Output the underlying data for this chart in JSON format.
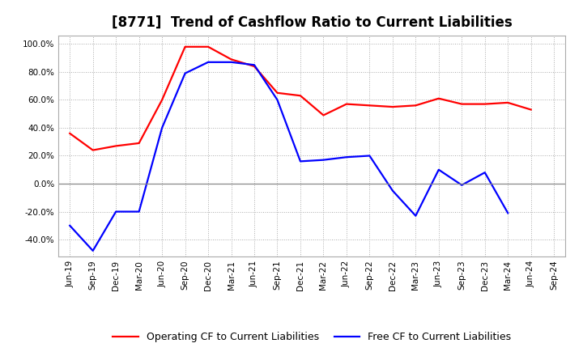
{
  "title": "[8771]  Trend of Cashflow Ratio to Current Liabilities",
  "x_labels": [
    "Jun-19",
    "Sep-19",
    "Dec-19",
    "Mar-20",
    "Jun-20",
    "Sep-20",
    "Dec-20",
    "Mar-21",
    "Jun-21",
    "Sep-21",
    "Dec-21",
    "Mar-22",
    "Jun-22",
    "Sep-22",
    "Dec-22",
    "Mar-23",
    "Jun-23",
    "Sep-23",
    "Dec-23",
    "Mar-24",
    "Jun-24",
    "Sep-24"
  ],
  "operating_cf": [
    0.36,
    0.24,
    0.27,
    0.29,
    0.6,
    0.98,
    0.98,
    0.89,
    0.84,
    0.65,
    0.63,
    0.49,
    0.57,
    0.56,
    0.55,
    0.56,
    0.61,
    0.57,
    0.57,
    0.58,
    0.53,
    null
  ],
  "free_cf": [
    -0.3,
    -0.48,
    -0.2,
    -0.2,
    0.4,
    0.79,
    0.87,
    0.87,
    0.85,
    0.6,
    0.16,
    0.17,
    0.19,
    0.2,
    -0.05,
    -0.23,
    0.1,
    -0.01,
    0.08,
    -0.21,
    null,
    null
  ],
  "operating_color": "#FF0000",
  "free_color": "#0000FF",
  "ylim": [
    -0.52,
    1.06
  ],
  "yticks": [
    -0.4,
    -0.2,
    0.0,
    0.2,
    0.4,
    0.6,
    0.8,
    1.0
  ],
  "background_color": "#FFFFFF",
  "plot_bg_color": "#FFFFFF",
  "grid_color": "#AAAAAA",
  "legend_operating": "Operating CF to Current Liabilities",
  "legend_free": "Free CF to Current Liabilities",
  "title_fontsize": 12,
  "tick_fontsize": 7.5,
  "legend_fontsize": 9,
  "linewidth": 1.6
}
